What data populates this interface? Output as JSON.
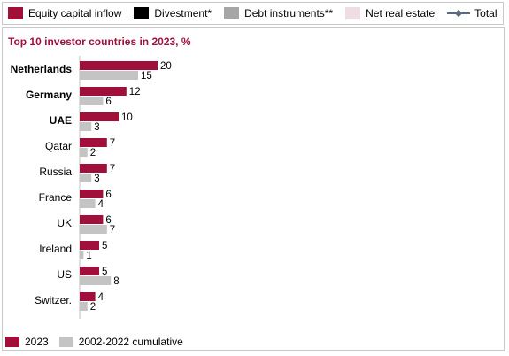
{
  "top_legend": {
    "items": [
      {
        "label": "Equity capital inflow",
        "color": "#a0103a",
        "kind": "box"
      },
      {
        "label": "Divestment*",
        "color": "#000000",
        "kind": "box"
      },
      {
        "label": "Debt instruments**",
        "color": "#a6a6a6",
        "kind": "box"
      },
      {
        "label": "Net real estate",
        "color": "#efdde3",
        "kind": "box"
      },
      {
        "label": "Total",
        "color": "#5b6b7d",
        "kind": "line"
      }
    ]
  },
  "chart_data": {
    "type": "bar",
    "orientation": "horizontal",
    "title": "Top 10 investor countries in 2023, %",
    "categories": [
      "Netherlands",
      "Germany",
      "UAE",
      "Qatar",
      "Russia",
      "France",
      "UK",
      "Ireland",
      "US",
      "Switzer."
    ],
    "bold_categories": [
      "Netherlands",
      "Germany",
      "UAE"
    ],
    "series": [
      {
        "name": "2023",
        "color": "#a0103a",
        "values": [
          20,
          12,
          10,
          7,
          7,
          6,
          6,
          5,
          5,
          4
        ]
      },
      {
        "name": "2002-2022 cumulative",
        "color": "#c4c4c4",
        "values": [
          15,
          6,
          3,
          2,
          3,
          4,
          7,
          1,
          8,
          2
        ]
      }
    ],
    "xlim": [
      0,
      20
    ],
    "data_labels": true,
    "grid": false,
    "legend_position": "bottom-left"
  }
}
